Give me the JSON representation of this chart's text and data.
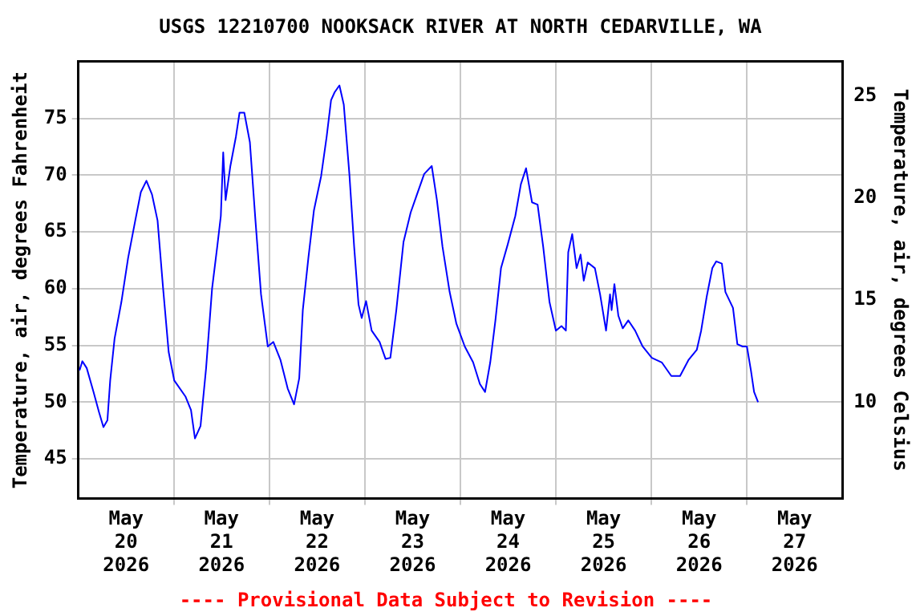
{
  "chart_data": {
    "type": "line",
    "title": "USGS 12210700 NOOKSACK RIVER AT NORTH CEDARVILLE, WA",
    "ylabel": "Temperature, air, degrees Fahrenheit",
    "y2label": "Temperature, air, degrees Celsius",
    "annotations": [
      "---- Provisional Data Subject to Revision ----"
    ],
    "x": [
      "2026-05-20T00:18",
      "2026-05-20T01:00",
      "2026-05-20T02:06",
      "2026-05-20T03:48",
      "2026-05-20T05:12",
      "2026-05-20T06:18",
      "2026-05-20T07:18",
      "2026-05-20T08:00",
      "2026-05-20T09:06",
      "2026-05-20T10:48",
      "2026-05-20T12:30",
      "2026-05-20T14:18",
      "2026-05-20T15:42",
      "2026-05-20T17:06",
      "2026-05-20T18:30",
      "2026-05-20T19:54",
      "2026-05-20T21:18",
      "2026-05-20T22:42",
      "2026-05-21T00:06",
      "2026-05-21T02:54",
      "2026-05-21T04:18",
      "2026-05-21T05:18",
      "2026-05-21T06:42",
      "2026-05-21T08:06",
      "2026-05-21T09:36",
      "2026-05-21T10:54",
      "2026-05-21T11:48",
      "2026-05-21T12:24",
      "2026-05-21T13:00",
      "2026-05-21T14:12",
      "2026-05-21T15:36",
      "2026-05-21T16:30",
      "2026-05-21T17:42",
      "2026-05-21T19:06",
      "2026-05-21T20:30",
      "2026-05-21T21:54",
      "2026-05-21T23:36",
      "2026-05-22T01:00",
      "2026-05-22T02:48",
      "2026-05-22T04:36",
      "2026-05-22T06:12",
      "2026-05-22T07:30",
      "2026-05-22T08:24",
      "2026-05-22T09:48",
      "2026-05-22T11:12",
      "2026-05-22T13:00",
      "2026-05-22T14:24",
      "2026-05-22T15:30",
      "2026-05-22T16:24",
      "2026-05-22T17:36",
      "2026-05-22T18:42",
      "2026-05-22T20:06",
      "2026-05-22T21:18",
      "2026-05-22T22:24",
      "2026-05-22T23:12",
      "2026-05-23T00:18",
      "2026-05-23T01:42",
      "2026-05-23T03:42",
      "2026-05-23T05:12",
      "2026-05-23T06:24",
      "2026-05-23T07:54",
      "2026-05-23T09:42",
      "2026-05-23T11:30",
      "2026-05-23T12:54",
      "2026-05-23T14:54",
      "2026-05-23T16:48",
      "2026-05-23T18:06",
      "2026-05-23T19:30",
      "2026-05-23T21:18",
      "2026-05-23T23:00",
      "2026-05-24T01:06",
      "2026-05-24T03:12",
      "2026-05-24T04:54",
      "2026-05-24T06:12",
      "2026-05-24T07:30",
      "2026-05-24T08:48",
      "2026-05-24T10:12",
      "2026-05-24T11:54",
      "2026-05-24T13:48",
      "2026-05-24T15:12",
      "2026-05-24T16:30",
      "2026-05-24T18:00",
      "2026-05-24T19:24",
      "2026-05-24T20:48",
      "2026-05-24T22:24",
      "2026-05-25T00:00",
      "2026-05-25T01:24",
      "2026-05-25T02:30",
      "2026-05-25T03:06",
      "2026-05-25T04:06",
      "2026-05-25T05:12",
      "2026-05-25T06:12",
      "2026-05-25T07:00",
      "2026-05-25T08:00",
      "2026-05-25T09:48",
      "2026-05-25T11:06",
      "2026-05-25T12:36",
      "2026-05-25T13:36",
      "2026-05-25T14:00",
      "2026-05-25T14:42",
      "2026-05-25T15:42",
      "2026-05-25T16:48",
      "2026-05-25T18:12",
      "2026-05-25T19:54",
      "2026-05-25T21:48",
      "2026-05-26T00:06",
      "2026-05-26T02:36",
      "2026-05-26T05:00",
      "2026-05-26T07:12",
      "2026-05-26T09:18",
      "2026-05-26T11:24",
      "2026-05-26T12:30",
      "2026-05-26T13:54",
      "2026-05-26T15:18",
      "2026-05-26T16:18",
      "2026-05-26T17:42",
      "2026-05-26T18:36",
      "2026-05-26T20:30",
      "2026-05-26T21:36",
      "2026-05-26T22:54",
      "2026-05-27T00:00",
      "2026-05-27T01:00",
      "2026-05-27T01:48",
      "2026-05-27T02:48"
    ],
    "series": [
      {
        "color": "#0000ff",
        "values": [
          52.8,
          53.6,
          53.0,
          50.9,
          49.1,
          47.8,
          48.4,
          51.9,
          55.6,
          58.8,
          62.7,
          66.0,
          68.5,
          69.5,
          68.3,
          66.0,
          60.0,
          54.4,
          51.9,
          50.5,
          49.3,
          46.8,
          47.9,
          53.0,
          60.0,
          63.7,
          66.4,
          72.0,
          67.8,
          70.8,
          73.4,
          75.5,
          75.5,
          72.9,
          66.0,
          59.5,
          54.9,
          55.3,
          53.7,
          51.2,
          49.8,
          52.1,
          58.1,
          62.7,
          66.9,
          69.9,
          73.4,
          76.6,
          77.3,
          77.9,
          76.2,
          70.1,
          63.7,
          58.6,
          57.4,
          58.9,
          56.3,
          55.3,
          53.8,
          53.9,
          58.1,
          64.1,
          66.7,
          68.1,
          70.1,
          70.8,
          67.8,
          63.7,
          59.7,
          56.9,
          54.9,
          53.5,
          51.6,
          50.9,
          53.5,
          57.2,
          61.8,
          63.9,
          66.4,
          69.2,
          70.6,
          67.6,
          67.4,
          63.7,
          58.8,
          56.3,
          56.7,
          56.3,
          63.2,
          64.8,
          61.8,
          63.0,
          60.7,
          62.3,
          61.8,
          59.5,
          56.3,
          59.5,
          58.1,
          60.4,
          57.6,
          56.5,
          57.2,
          56.3,
          54.9,
          53.9,
          53.5,
          52.3,
          52.3,
          53.7,
          54.6,
          56.3,
          59.3,
          61.8,
          62.4,
          62.2,
          59.7,
          58.3,
          55.1,
          54.9,
          54.9,
          52.8,
          50.9,
          50.0
        ]
      }
    ],
    "xlim": [
      "2026-05-20T00:00",
      "2026-05-28T00:00"
    ],
    "xticks": [
      {
        "value": "2026-05-20T12:00",
        "label": "May\n20\n2026"
      },
      {
        "value": "2026-05-21T00:00",
        "label": null
      },
      {
        "value": "2026-05-21T12:00",
        "label": "May\n21\n2026"
      },
      {
        "value": "2026-05-22T00:00",
        "label": null
      },
      {
        "value": "2026-05-22T12:00",
        "label": "May\n22\n2026"
      },
      {
        "value": "2026-05-23T00:00",
        "label": null
      },
      {
        "value": "2026-05-23T12:00",
        "label": "May\n23\n2026"
      },
      {
        "value": "2026-05-24T00:00",
        "label": null
      },
      {
        "value": "2026-05-24T12:00",
        "label": "May\n24\n2026"
      },
      {
        "value": "2026-05-25T00:00",
        "label": null
      },
      {
        "value": "2026-05-25T12:00",
        "label": "May\n25\n2026"
      },
      {
        "value": "2026-05-26T00:00",
        "label": null
      },
      {
        "value": "2026-05-26T12:00",
        "label": "May\n26\n2026"
      },
      {
        "value": "2026-05-27T00:00",
        "label": null
      },
      {
        "value": "2026-05-27T12:00",
        "label": "May\n27\n2026"
      }
    ],
    "ylim": [
      41.5,
      80
    ],
    "yticks": [
      45,
      50,
      55,
      60,
      65,
      70,
      75
    ],
    "y2lim": [
      5.28,
      26.67
    ],
    "y2ticks": [
      10,
      15,
      20,
      25
    ],
    "grid": true,
    "marker": "none",
    "line_style": "solid"
  }
}
